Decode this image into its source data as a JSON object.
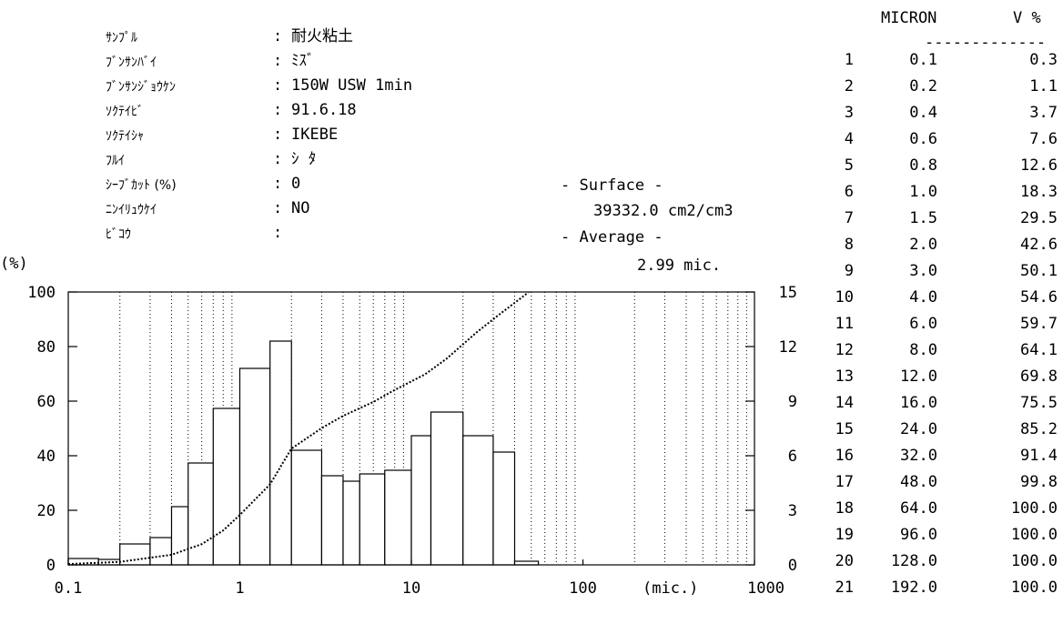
{
  "info": {
    "rows": [
      {
        "label": "ｻﾝﾌﾟﾙ",
        "value": "耐火粘土"
      },
      {
        "label": "ﾌﾞﾝｻﾝﾊﾞｲ",
        "value": "ﾐｽﾞ"
      },
      {
        "label": "ﾌﾞﾝｻﾝｼﾞｮｳｹﾝ",
        "value": "150W USW 1min"
      },
      {
        "label": "ｿｸﾃｲﾋﾞ",
        "value": "91.6.18"
      },
      {
        "label": "ｿｸﾃｲｼｬ",
        "value": "IKEBE"
      },
      {
        "label": "ﾌﾙｲ",
        "value": "ｼ ﾀ"
      },
      {
        "label": "ｼｰﾌﾞｶｯﾄ (%)",
        "value": "0"
      },
      {
        "label": "ﾆﾝｲﾘｭｳｹｲ",
        "value": "NO"
      },
      {
        "label": "ﾋﾞｺｳ",
        "value": ""
      }
    ],
    "surface_label": "- Surface -",
    "surface_value": "39332.0 cm2/cm3",
    "average_label": "- Average -",
    "average_value": "2.99 mic."
  },
  "table": {
    "header_micron": "MICRON",
    "header_v": "V %",
    "separator": "-------------",
    "rows": [
      [
        "1",
        "0.1",
        "0.3"
      ],
      [
        "2",
        "0.2",
        "1.1"
      ],
      [
        "3",
        "0.4",
        "3.7"
      ],
      [
        "4",
        "0.6",
        "7.6"
      ],
      [
        "5",
        "0.8",
        "12.6"
      ],
      [
        "6",
        "1.0",
        "18.3"
      ],
      [
        "7",
        "1.5",
        "29.5"
      ],
      [
        "8",
        "2.0",
        "42.6"
      ],
      [
        "9",
        "3.0",
        "50.1"
      ],
      [
        "10",
        "4.0",
        "54.6"
      ],
      [
        "11",
        "6.0",
        "59.7"
      ],
      [
        "12",
        "8.0",
        "64.1"
      ],
      [
        "13",
        "12.0",
        "69.8"
      ],
      [
        "14",
        "16.0",
        "75.5"
      ],
      [
        "15",
        "24.0",
        "85.2"
      ],
      [
        "16",
        "32.0",
        "91.4"
      ],
      [
        "17",
        "48.0",
        "99.8"
      ],
      [
        "18",
        "64.0",
        "100.0"
      ],
      [
        "19",
        "96.0",
        "100.0"
      ],
      [
        "20",
        "128.0",
        "100.0"
      ],
      [
        "21",
        "192.0",
        "100.0"
      ]
    ]
  },
  "chart_data": {
    "type": "bar",
    "xscale": "log",
    "xlim": [
      0.1,
      1000
    ],
    "ylim_left": [
      0,
      100
    ],
    "ylim_right": [
      0,
      15
    ],
    "ylabel_left": "(%)",
    "xlabel": "(mic.)",
    "x_ticks": [
      "0.1",
      "1",
      "10",
      "100",
      "1000"
    ],
    "y_ticks_left": [
      "0",
      "20",
      "40",
      "60",
      "80",
      "100"
    ],
    "y_ticks_right": [
      "0",
      "3",
      "6",
      "9",
      "12",
      "15"
    ],
    "histogram": {
      "edges": [
        0.1,
        0.15,
        0.2,
        0.3,
        0.4,
        0.5,
        0.7,
        1.0,
        1.5,
        2.0,
        3.0,
        4.0,
        5.0,
        7.0,
        10.0,
        13.0,
        20.0,
        30.0,
        40.0,
        55.0,
        70.0
      ],
      "values": [
        0.35,
        0.3,
        1.15,
        1.5,
        3.2,
        5.6,
        8.6,
        10.8,
        12.3,
        6.3,
        4.9,
        4.6,
        5.0,
        5.2,
        7.1,
        8.4,
        7.1,
        6.2,
        0.2,
        0.0
      ]
    },
    "cumulative": {
      "x": [
        0.1,
        0.2,
        0.4,
        0.6,
        0.8,
        1.0,
        1.5,
        2.0,
        3.0,
        4.0,
        6.0,
        8.0,
        12.0,
        16.0,
        24.0,
        32.0,
        48.0
      ],
      "y": [
        0.3,
        1.1,
        3.7,
        7.6,
        12.6,
        18.3,
        29.5,
        42.6,
        50.1,
        54.6,
        59.7,
        64.1,
        69.8,
        75.5,
        85.2,
        91.4,
        99.8
      ]
    }
  }
}
